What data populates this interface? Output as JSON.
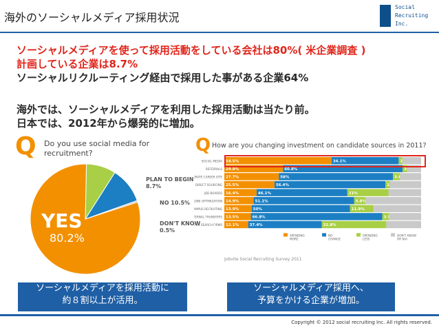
{
  "header": {
    "title": "海外のソーシャルメディア採用状況",
    "logo": [
      "Social",
      "Recruiting",
      "Inc."
    ]
  },
  "headlines": [
    {
      "text": "ソーシャルメディアを使って採用活動をしている会社は80%( 米企業調査 )",
      "color": "#e0251b"
    },
    {
      "text": "計画している企業は8.7%",
      "color": "#e0251b"
    },
    {
      "text": "ソーシャルリクルーティング経由で採用した事がある企業64%",
      "color": "#2a2a2a"
    },
    {
      "text": "海外では、ソーシャルメディアを利用した採用活動は当たり前。",
      "color": "#2a2a2a"
    },
    {
      "text": "日本では、2012年から爆発的に増加。",
      "color": "#2a2a2a"
    }
  ],
  "pie_question": {
    "mark": "Q",
    "text": "Do you use social media for recruitment?"
  },
  "pie_labels": {
    "yes": "YES",
    "yes_pct": "80.2%",
    "plan": "PLAN TO BEGIN 8.7%",
    "no": "NO 10.5%",
    "dont_know": "DON'T KNOW 0.5%"
  },
  "bar_question": {
    "mark": "Q",
    "text": "How are you changing investment on candidate sources in 2011?"
  },
  "survey_note": "Jobvite Social Recruiting Survey 2011",
  "boxes": {
    "left": [
      "ソーシャルメディアを採用活動に",
      "約８割以上が活用。"
    ],
    "right": [
      "ソーシャルメディア採用へ、",
      "予算をかける企業が増加。"
    ]
  },
  "copyright": "Copyright © 2012 social recruiting Inc. All rights reserved.",
  "colors": {
    "accent_blue": "#1f5fa5",
    "orange": "#f39000",
    "blue": "#1c7fc3",
    "green": "#a8cf45",
    "gray": "#c9c9c9",
    "red": "#e0251b"
  },
  "chart_data": [
    {
      "type": "pie",
      "title": "Do you use social media for recruitment?",
      "slices": [
        {
          "label": "YES",
          "value": 80.2,
          "color": "#f39000"
        },
        {
          "label": "PLAN TO BEGIN",
          "value": 8.7,
          "color": "#a8cf45"
        },
        {
          "label": "NO",
          "value": 10.5,
          "color": "#1c7fc3"
        },
        {
          "label": "DON'T KNOW",
          "value": 0.5,
          "color": "#c9c9c9"
        }
      ]
    },
    {
      "type": "bar",
      "stacked": true,
      "orientation": "horizontal",
      "title": "How are you changing investment on candidate sources in 2011?",
      "categories": [
        "SOCIAL MEDIA",
        "REFERRALS",
        "CORPORATE CAREER SITE",
        "DIRECT SOURCING",
        "JOB BOARDS",
        "SEARCH ENGINE OPTIMIZATION",
        "CAMPUS RECRUITING",
        "INTERNAL TRANSFERS",
        "3RD PARTY RECRUITERS OR SEARCH FIRMS"
      ],
      "series": [
        {
          "name": "SPENDING MORE",
          "color": "#f39000",
          "values": [
            54.5,
            29.8,
            27.7,
            25.5,
            16.4,
            14.9,
            13.9,
            13.5,
            12.1
          ],
          "labels": [
            "54.5%",
            "29.8%",
            "27.7%",
            "25.5%",
            "16.4%",
            "14.9%",
            "13.9%",
            "13.5%",
            "12.1%"
          ]
        },
        {
          "name": "NO CHANGE",
          "color": "#1c7fc3",
          "values": [
            34.1,
            60.8,
            58,
            56.4,
            46.1,
            51.1,
            50,
            66.8,
            37.4
          ],
          "labels": [
            "34.1%",
            "60.8%",
            "58%",
            "56.4%",
            "46.1%",
            "51.1%",
            "50%",
            "66.8%",
            "37.4%"
          ]
        },
        {
          "name": "SPENDING LESS",
          "color": "#a8cf45",
          "values": [
            1.8,
            2.3,
            3.6,
            2.3,
            21,
            5.8,
            11.9,
            3.5,
            32.8
          ],
          "labels": [
            "1.8%",
            "2.3%",
            "3.6%",
            "2.3%",
            "21%",
            "5.8%",
            "11.9%",
            "3.5%",
            "32.8%"
          ]
        },
        {
          "name": "DON'T KNOW OR N/A",
          "color": "#c9c9c9",
          "values": [
            9.6,
            7.1,
            10.7,
            15.8,
            16.5,
            28.2,
            24.2,
            16.2,
            17.7
          ],
          "labels": [
            "",
            "",
            "",
            "",
            "",
            "",
            "",
            "",
            ""
          ]
        }
      ],
      "xlim": [
        0,
        100
      ]
    }
  ]
}
